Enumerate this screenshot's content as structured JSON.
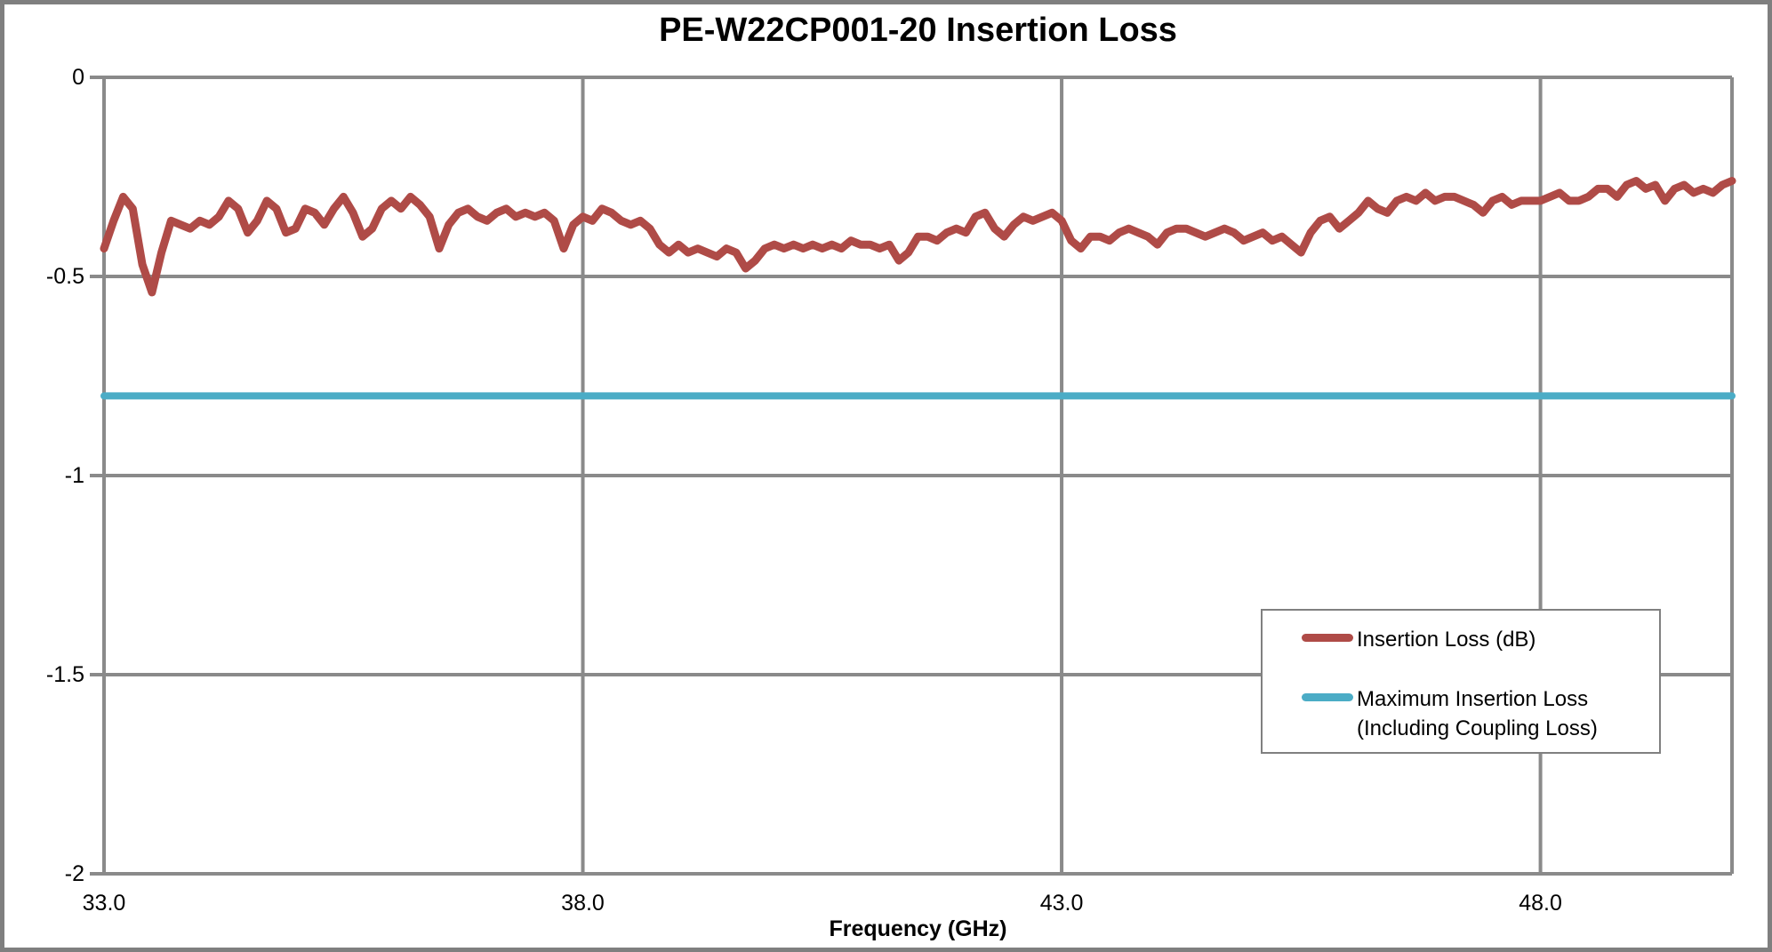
{
  "colors": {
    "series_red": "#AF4B47",
    "series_blue": "#4BACC6",
    "gridline": "#8A8A8A",
    "frame_border": "#7F7F7F",
    "legend_border": "#808080",
    "text": "#000000"
  },
  "legend": {
    "items": [
      {
        "label": "Insertion Loss (dB)"
      },
      {
        "label_line1": "Maximum Insertion Loss",
        "label_line2": "(Including Coupling Loss)"
      }
    ]
  },
  "chart_data": {
    "type": "line",
    "title": "PE-W22CP001-20 Insertion Loss",
    "xlabel": "Frequency (GHz)",
    "ylabel": "",
    "xlim": [
      33.0,
      50.0
    ],
    "ylim": [
      -2,
      0
    ],
    "grid": true,
    "legend_position": "right-middle",
    "x_ticks": {
      "values": [
        33,
        38,
        43,
        48
      ],
      "labels": [
        "33.0",
        "38.0",
        "43.0",
        "48.0"
      ]
    },
    "y_ticks": {
      "values": [
        0,
        -0.5,
        -1,
        -1.5,
        -2
      ],
      "labels": [
        "0",
        "-0.5",
        "-1",
        "-1.5",
        "-2"
      ]
    },
    "series": [
      {
        "name": "Insertion Loss (dB)",
        "color": "#AF4B47",
        "kind": "curve",
        "x_start": 33.0,
        "x_step": 0.1,
        "values": [
          -0.43,
          -0.36,
          -0.3,
          -0.33,
          -0.47,
          -0.54,
          -0.44,
          -0.36,
          -0.37,
          -0.38,
          -0.36,
          -0.37,
          -0.35,
          -0.31,
          -0.33,
          -0.39,
          -0.36,
          -0.31,
          -0.33,
          -0.39,
          -0.38,
          -0.33,
          -0.34,
          -0.37,
          -0.33,
          -0.3,
          -0.34,
          -0.4,
          -0.38,
          -0.33,
          -0.31,
          -0.33,
          -0.3,
          -0.32,
          -0.35,
          -0.43,
          -0.37,
          -0.34,
          -0.33,
          -0.35,
          -0.36,
          -0.34,
          -0.33,
          -0.35,
          -0.34,
          -0.35,
          -0.34,
          -0.36,
          -0.43,
          -0.37,
          -0.35,
          -0.36,
          -0.33,
          -0.34,
          -0.36,
          -0.37,
          -0.36,
          -0.38,
          -0.42,
          -0.44,
          -0.42,
          -0.44,
          -0.43,
          -0.44,
          -0.45,
          -0.43,
          -0.44,
          -0.48,
          -0.46,
          -0.43,
          -0.42,
          -0.43,
          -0.42,
          -0.43,
          -0.42,
          -0.43,
          -0.42,
          -0.43,
          -0.41,
          -0.42,
          -0.42,
          -0.43,
          -0.42,
          -0.46,
          -0.44,
          -0.4,
          -0.4,
          -0.41,
          -0.39,
          -0.38,
          -0.39,
          -0.35,
          -0.34,
          -0.38,
          -0.4,
          -0.37,
          -0.35,
          -0.36,
          -0.35,
          -0.34,
          -0.36,
          -0.41,
          -0.43,
          -0.4,
          -0.4,
          -0.41,
          -0.39,
          -0.38,
          -0.39,
          -0.4,
          -0.42,
          -0.39,
          -0.38,
          -0.38,
          -0.39,
          -0.4,
          -0.39,
          -0.38,
          -0.39,
          -0.41,
          -0.4,
          -0.39,
          -0.41,
          -0.4,
          -0.42,
          -0.44,
          -0.39,
          -0.36,
          -0.35,
          -0.38,
          -0.36,
          -0.34,
          -0.31,
          -0.33,
          -0.34,
          -0.31,
          -0.3,
          -0.31,
          -0.29,
          -0.31,
          -0.3,
          -0.3,
          -0.31,
          -0.32,
          -0.34,
          -0.31,
          -0.3,
          -0.32,
          -0.31,
          -0.31,
          -0.31,
          -0.3,
          -0.29,
          -0.31,
          -0.31,
          -0.3,
          -0.28,
          -0.28,
          -0.3,
          -0.27,
          -0.26,
          -0.28,
          -0.27,
          -0.31,
          -0.28,
          -0.27,
          -0.29,
          -0.28,
          -0.29,
          -0.27,
          -0.26
        ]
      },
      {
        "name": "Maximum Insertion Loss (Including Coupling Loss)",
        "color": "#4BACC6",
        "kind": "hline",
        "value": -0.8
      }
    ]
  }
}
